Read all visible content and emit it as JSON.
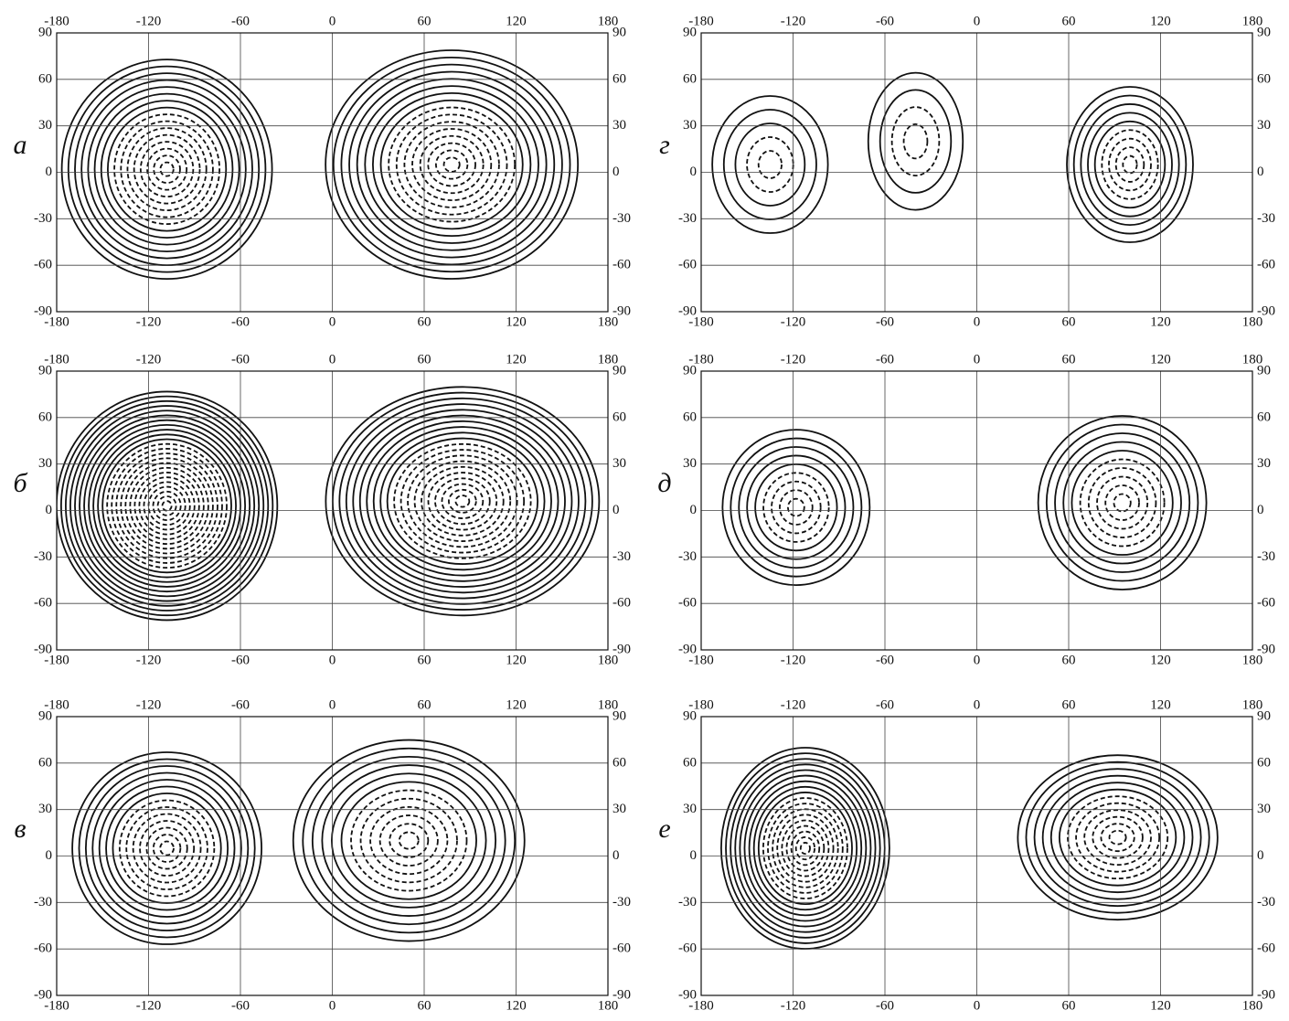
{
  "chart_data": [
    {
      "type": "contour",
      "label": "а",
      "xlim": [
        -180,
        180
      ],
      "ylim": [
        -90,
        90
      ],
      "xticks": [
        -180,
        -120,
        -60,
        0,
        60,
        120,
        180
      ],
      "yticks": [
        -90,
        -60,
        -30,
        0,
        30,
        60,
        90
      ],
      "grid": true
    },
    {
      "type": "contour",
      "label": "б",
      "xlim": [
        -180,
        180
      ],
      "ylim": [
        -90,
        90
      ],
      "xticks": [
        -180,
        -120,
        -60,
        0,
        60,
        120,
        180
      ],
      "yticks": [
        -90,
        -60,
        -30,
        0,
        30,
        60,
        90
      ],
      "grid": true
    },
    {
      "type": "contour",
      "label": "в",
      "xlim": [
        -180,
        180
      ],
      "ylim": [
        -90,
        90
      ],
      "xticks": [
        -180,
        -120,
        -60,
        0,
        60,
        120,
        180
      ],
      "yticks": [
        -90,
        -60,
        -30,
        0,
        30,
        60,
        90
      ],
      "grid": true
    },
    {
      "type": "contour",
      "label": "г",
      "xlim": [
        -180,
        180
      ],
      "ylim": [
        -90,
        90
      ],
      "xticks": [
        -180,
        -120,
        -60,
        0,
        60,
        120,
        180
      ],
      "yticks": [
        -90,
        -60,
        -30,
        0,
        30,
        60,
        90
      ],
      "grid": true
    },
    {
      "type": "contour",
      "label": "д",
      "xlim": [
        -180,
        180
      ],
      "ylim": [
        -90,
        90
      ],
      "xticks": [
        -180,
        -120,
        -60,
        0,
        60,
        120,
        180
      ],
      "yticks": [
        -90,
        -60,
        -30,
        0,
        30,
        60,
        90
      ],
      "grid": true
    },
    {
      "type": "contour",
      "label": "е",
      "xlim": [
        -180,
        180
      ],
      "ylim": [
        -90,
        90
      ],
      "xticks": [
        -180,
        -120,
        -60,
        0,
        60,
        120,
        180
      ],
      "yticks": [
        -90,
        -60,
        -30,
        0,
        30,
        60,
        90
      ],
      "grid": true
    }
  ]
}
